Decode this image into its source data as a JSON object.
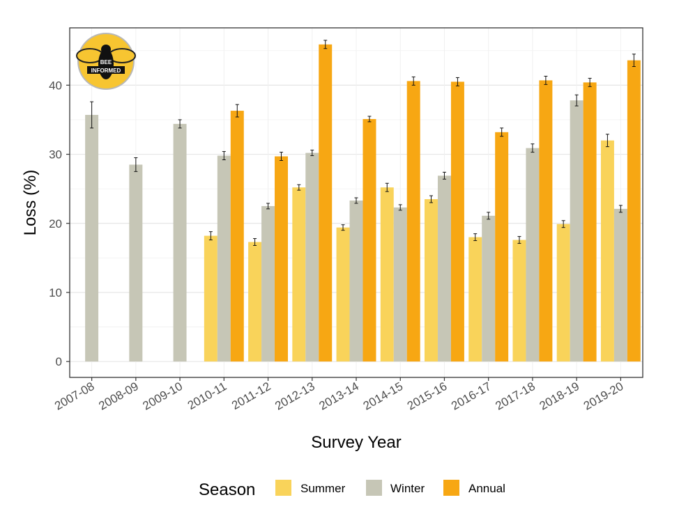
{
  "chart_data": {
    "type": "bar",
    "categories": [
      "2007-08",
      "2008-09",
      "2009-10",
      "2010-11",
      "2011-12",
      "2012-13",
      "2013-14",
      "2014-15",
      "2015-16",
      "2016-17",
      "2017-18",
      "2018-19",
      "2019-20"
    ],
    "series": [
      {
        "name": "Summer",
        "color": "#f9d35a",
        "values": [
          null,
          null,
          null,
          18.2,
          17.3,
          25.2,
          19.4,
          25.2,
          23.5,
          18.0,
          17.6,
          19.9,
          32.0
        ],
        "errors": [
          null,
          null,
          null,
          0.6,
          0.5,
          0.4,
          0.4,
          0.6,
          0.5,
          0.5,
          0.5,
          0.5,
          0.9
        ]
      },
      {
        "name": "Winter",
        "color": "#c6c6b6",
        "values": [
          35.7,
          28.5,
          34.4,
          29.8,
          22.5,
          30.2,
          23.3,
          22.3,
          26.9,
          21.1,
          30.9,
          37.8,
          22.1
        ],
        "errors": [
          1.9,
          1.0,
          0.6,
          0.6,
          0.4,
          0.4,
          0.4,
          0.4,
          0.5,
          0.5,
          0.6,
          0.8,
          0.5
        ]
      },
      {
        "name": "Annual",
        "color": "#f7a713",
        "values": [
          null,
          null,
          null,
          36.3,
          29.7,
          45.9,
          35.1,
          40.6,
          40.5,
          33.2,
          40.7,
          40.4,
          43.6
        ],
        "errors": [
          null,
          null,
          null,
          0.9,
          0.6,
          0.6,
          0.4,
          0.6,
          0.6,
          0.6,
          0.6,
          0.6,
          0.9
        ]
      }
    ],
    "xlabel": "Survey Year",
    "ylabel": "Loss (%)",
    "yticks": [
      0,
      10,
      20,
      30,
      40
    ],
    "ylim": [
      -2.3,
      48.3
    ],
    "grid": true,
    "legend": {
      "title": "Season",
      "position": "bottom"
    },
    "logo": {
      "line1": "BEE",
      "line2": "INFORMED"
    }
  }
}
